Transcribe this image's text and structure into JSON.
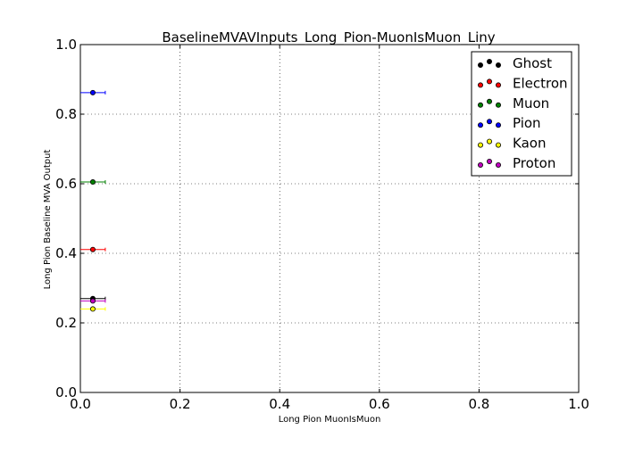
{
  "chart_data": {
    "type": "scatter",
    "title": "BaselineMVAVInputs_Long_Pion-MuonIsMuon_Liny",
    "xlabel": "Long Pion MuonIsMuon",
    "ylabel": "Long Pion Baseline MVA Output",
    "xlim": [
      0,
      1
    ],
    "ylim": [
      0,
      1
    ],
    "x_ticks": [
      "0.0",
      "0.2",
      "0.4",
      "0.6",
      "0.8",
      "1.0"
    ],
    "y_ticks": [
      "0.0",
      "0.2",
      "0.4",
      "0.6",
      "0.8",
      "1.0"
    ],
    "grid": true,
    "legend_position": "top-right",
    "series": [
      {
        "name": "Ghost",
        "color": "#000000",
        "points": [
          {
            "x": 0.025,
            "y": 0.27,
            "xerr": 0.025
          }
        ]
      },
      {
        "name": "Electron",
        "color": "#ff0000",
        "points": [
          {
            "x": 0.025,
            "y": 0.411,
            "xerr": 0.025
          }
        ]
      },
      {
        "name": "Muon",
        "color": "#008000",
        "points": [
          {
            "x": 0.025,
            "y": 0.605,
            "xerr": 0.025
          }
        ]
      },
      {
        "name": "Pion",
        "color": "#0000ff",
        "points": [
          {
            "x": 0.025,
            "y": 0.862,
            "xerr": 0.025
          }
        ]
      },
      {
        "name": "Kaon",
        "color": "#ffff00",
        "points": [
          {
            "x": 0.025,
            "y": 0.24,
            "xerr": 0.025
          }
        ]
      },
      {
        "name": "Proton",
        "color": "#bf00bf",
        "points": [
          {
            "x": 0.025,
            "y": 0.263,
            "xerr": 0.025
          }
        ]
      }
    ]
  }
}
